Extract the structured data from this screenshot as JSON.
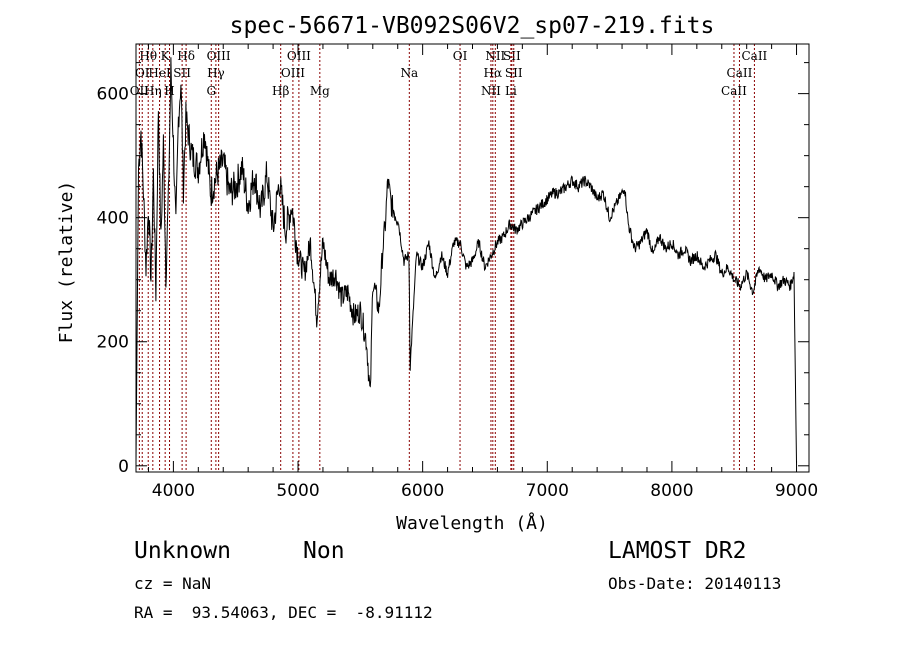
{
  "chart_data": {
    "type": "line",
    "title": "spec-56671-VB092S06V2_sp07-219.fits",
    "xlabel": "Wavelength (Å)",
    "ylabel": "Flux (relative)",
    "xlim": [
      3700,
      9100
    ],
    "ylim": [
      -10,
      680
    ],
    "x_ticks": [
      4000,
      5000,
      6000,
      7000,
      8000,
      9000
    ],
    "y_ticks": [
      0,
      200,
      400,
      600
    ],
    "x_minor_step": 200,
    "y_minor_step": 50,
    "grid": false,
    "series": [
      {
        "x": [
          3700,
          3720,
          3740,
          3760,
          3780,
          3800,
          3820,
          3840,
          3860,
          3880,
          3900,
          3920,
          3940,
          3960,
          3980,
          4000,
          4020,
          4040,
          4060,
          4080,
          4100,
          4150,
          4200,
          4250,
          4300,
          4350,
          4400,
          4450,
          4500,
          4550,
          4600,
          4650,
          4700,
          4750,
          4800,
          4850,
          4900,
          4950,
          5000,
          5050,
          5100,
          5150,
          5200,
          5250,
          5300,
          5350,
          5400,
          5450,
          5500,
          5550,
          5580,
          5600,
          5650,
          5680,
          5700,
          5720,
          5750,
          5800,
          5850,
          5890,
          5900,
          5950,
          6000,
          6050,
          6100,
          6150,
          6200,
          6250,
          6300,
          6350,
          6400,
          6450,
          6500,
          6550,
          6600,
          6650,
          6700,
          6750,
          6800,
          6850,
          6900,
          6950,
          7000,
          7050,
          7100,
          7150,
          7200,
          7250,
          7300,
          7350,
          7400,
          7450,
          7500,
          7550,
          7600,
          7620,
          7650,
          7700,
          7750,
          7800,
          7850,
          7900,
          7950,
          8000,
          8050,
          8100,
          8150,
          8200,
          8250,
          8300,
          8350,
          8400,
          8450,
          8500,
          8550,
          8600,
          8650,
          8700,
          8750,
          8800,
          8850,
          8900,
          8950,
          8980,
          9000
        ],
        "y": [
          5,
          480,
          540,
          440,
          320,
          420,
          300,
          470,
          280,
          580,
          360,
          520,
          310,
          430,
          640,
          520,
          380,
          560,
          620,
          450,
          560,
          500,
          480,
          540,
          440,
          470,
          490,
          440,
          450,
          480,
          420,
          470,
          410,
          470,
          380,
          460,
          380,
          420,
          340,
          310,
          360,
          240,
          360,
          300,
          310,
          270,
          280,
          240,
          250,
          200,
          110,
          300,
          250,
          350,
          390,
          460,
          420,
          400,
          330,
          340,
          160,
          340,
          320,
          360,
          300,
          340,
          310,
          360,
          360,
          320,
          330,
          360,
          320,
          340,
          360,
          370,
          390,
          380,
          390,
          400,
          410,
          420,
          430,
          440,
          440,
          450,
          460,
          450,
          460,
          450,
          430,
          440,
          400,
          420,
          440,
          450,
          390,
          350,
          360,
          380,
          340,
          370,
          350,
          360,
          340,
          350,
          330,
          340,
          320,
          330,
          340,
          310,
          320,
          300,
          290,
          310,
          280,
          320,
          300,
          310,
          290,
          300,
          290,
          310,
          5
        ]
      }
    ],
    "line_ids": [
      {
        "label": "Hθ",
        "x": 3798,
        "row": 1
      },
      {
        "label": "OI",
        "x": 3750,
        "row": 2
      },
      {
        "label": "OII",
        "x": 3727,
        "row": 3
      },
      {
        "label": "K",
        "x": 3934,
        "row": 1
      },
      {
        "label": "HeI",
        "x": 3889,
        "row": 2
      },
      {
        "label": "Hη",
        "x": 3835,
        "row": 3
      },
      {
        "label": "Hδ",
        "x": 4102,
        "row": 1
      },
      {
        "label": "SII",
        "x": 4070,
        "row": 2
      },
      {
        "label": "H",
        "x": 3969,
        "row": 3
      },
      {
        "label": "OIII",
        "x": 4363,
        "row": 1
      },
      {
        "label": "Hγ",
        "x": 4341,
        "row": 2
      },
      {
        "label": "G",
        "x": 4304,
        "row": 3
      },
      {
        "label": "OIII",
        "x": 5007,
        "row": 1
      },
      {
        "label": "OIII",
        "x": 4959,
        "row": 2
      },
      {
        "label": "Hβ",
        "x": 4861,
        "row": 3
      },
      {
        "label": "Mg",
        "x": 5175,
        "row": 3
      },
      {
        "label": "Na",
        "x": 5893,
        "row": 2
      },
      {
        "label": "OI",
        "x": 6300,
        "row": 1
      },
      {
        "label": "NII",
        "x": 6583,
        "row": 1
      },
      {
        "label": "SII",
        "x": 6716,
        "row": 1
      },
      {
        "label": "Hα",
        "x": 6563,
        "row": 2
      },
      {
        "label": "SII",
        "x": 6731,
        "row": 2
      },
      {
        "label": "NII",
        "x": 6548,
        "row": 3
      },
      {
        "label": "Li",
        "x": 6708,
        "row": 3
      },
      {
        "label": "CaII",
        "x": 8662,
        "row": 1
      },
      {
        "label": "CaII",
        "x": 8542,
        "row": 2
      },
      {
        "label": "CaII",
        "x": 8498,
        "row": 3
      }
    ],
    "line_id_color": "#8b0000"
  },
  "info": {
    "object_class": "Unknown",
    "object_subclass": "Non",
    "survey": "LAMOST DR2",
    "redshift": "cz = NaN",
    "obs_date": "Obs-Date: 20140113",
    "coords": "RA =  93.54063, DEC =  -8.91112"
  }
}
